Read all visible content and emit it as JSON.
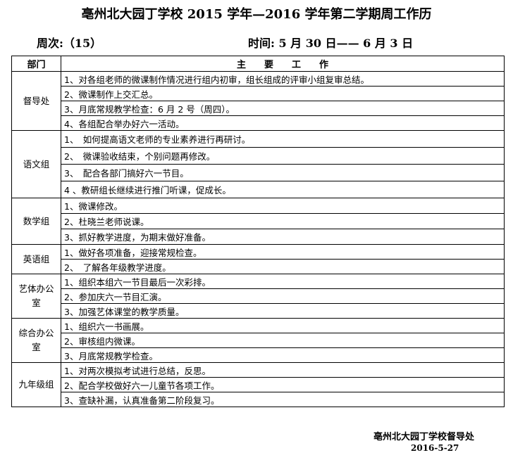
{
  "title": "亳州北大园丁学校 2015 学年—2016 学年第二学期周工作历",
  "week": "周次:（15）",
  "time": "时间:  5 月 30 日—— 6 月 3 日",
  "headers": {
    "dept": "部门",
    "work": "主　　要　　工　　作"
  },
  "groups": [
    {
      "dept": "督导处",
      "h": 21,
      "items": [
        "1、对各组老师的微课制作情况进行组内初审，组长组成的评审小组复审总结。",
        "2、微课制作上交汇总。",
        "3、月底常规教学检查：6 月 2 号（周四）。",
        "4、各组配合举办好六一活动。"
      ]
    },
    {
      "dept": "语文组",
      "h": 24,
      "items": [
        "1、　如何提高语文老师的专业素养进行再研讨。",
        "2、　微课验收结束，个别问题再修改。",
        "3、　配合各部门搞好六一节目。",
        "4 、教研组长继续进行推门听课，促成长。"
      ]
    },
    {
      "dept": "数学组",
      "h": 22,
      "items": [
        "1、微课修改。",
        "2、杜晓兰老师说课。",
        "3、抓好教学进度，为期末做好准备。"
      ]
    },
    {
      "dept": "英语组",
      "h": 21,
      "items": [
        "1、做好各项准备，迎接常规检查。",
        "2、　了解各年级教学进度。"
      ]
    },
    {
      "dept": "艺体办公室",
      "h": 21,
      "items": [
        "1、组织本组六一节目最后一次彩排。",
        "2、参加庆六一节目汇演。",
        "3、加强艺体课堂的教学质量。"
      ]
    },
    {
      "dept": "综合办公室",
      "h": 21,
      "items": [
        "1、组织六一书画展。",
        "2、审核组内微课。",
        "3、月底常规教学检查。"
      ]
    },
    {
      "dept": "九年级组",
      "h": 21,
      "items": [
        "1、对两次模拟考试进行总结，反思。",
        "2、配合学校做好六一儿童节各项工作。",
        "3、查缺补漏，认真准备第二阶段复习。"
      ]
    }
  ],
  "footer": {
    "org": "亳州北大园丁学校督导处",
    "date": "2016-5-27"
  }
}
